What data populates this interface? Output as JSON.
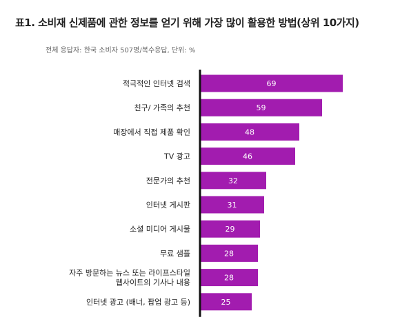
{
  "title": "표1. 소비재 신제품에 관한 정보를 얻기 위해 가장 많이 활용한 방법(상위 10가지)",
  "subtitle": "전체 응답자: 한국 소비자 507명/복수응답, 단위: %",
  "colors": {
    "bar": "#a21caf",
    "axis": "#111111",
    "value_text": "#ffffff"
  },
  "chart_data": {
    "type": "bar",
    "orientation": "horizontal",
    "title": "표1. 소비재 신제품에 관한 정보를 얻기 위해 가장 많이 활용한 방법(상위 10가지)",
    "subtitle": "전체 응답자: 한국 소비자 507명/복수응답, 단위: %",
    "categories": [
      [
        "적극적인 인터넷 검색"
      ],
      [
        "친구/ 가족의 추천"
      ],
      [
        "매장에서 직접 제품 확인"
      ],
      [
        "TV 광고"
      ],
      [
        "전문가의 추천"
      ],
      [
        "인터넷 게시판"
      ],
      [
        "소셜 미디어 게시물"
      ],
      [
        "무료 샘플"
      ],
      [
        "자주 방문하는 뉴스 또는 라이프스타일",
        "웹사이트의 기사나 내용"
      ],
      [
        "인터넷 광고 (배너, 팝업 광고 등)"
      ]
    ],
    "values": [
      69,
      59,
      48,
      46,
      32,
      31,
      29,
      28,
      28,
      25
    ],
    "data_labels": [
      "69",
      "59",
      "48",
      "46",
      "32",
      "31",
      "29",
      "28",
      "28",
      "25"
    ],
    "xlim": [
      0,
      70
    ],
    "grid": false,
    "legend": "none"
  }
}
